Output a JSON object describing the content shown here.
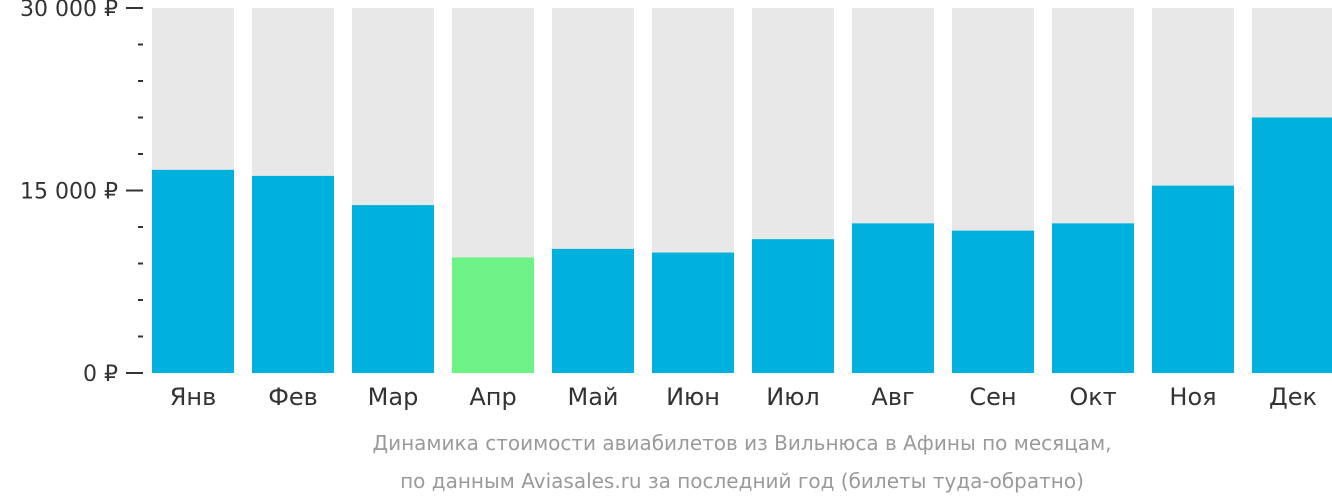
{
  "chart_data": {
    "type": "bar",
    "categories": [
      "Янв",
      "Фев",
      "Мар",
      "Апр",
      "Май",
      "Июн",
      "Июл",
      "Авг",
      "Сен",
      "Окт",
      "Ноя",
      "Дек"
    ],
    "values": [
      16700,
      16200,
      13800,
      9500,
      10200,
      9900,
      11000,
      12300,
      11700,
      12300,
      15400,
      21000
    ],
    "ylim": [
      0,
      30000
    ],
    "y_ticks": [
      0,
      15000,
      30000
    ],
    "y_tick_labels": [
      "0 ₽",
      "15 000 ₽",
      "30 000 ₽"
    ],
    "minor_ticks_per_interval": 4,
    "highlight_index": 3,
    "colors": {
      "bar": "#00b0dd",
      "highlight": "#6cf287",
      "background_bar": "#e8e8e8",
      "axis": "#333333",
      "caption": "#9a9a9a"
    },
    "caption": [
      "Динамика стоимости авиабилетов из Вильнюса в Афины по месяцам,",
      "по данным Aviasales.ru за последний год (билеты туда-обратно)"
    ],
    "grid": false,
    "legend": "none"
  }
}
